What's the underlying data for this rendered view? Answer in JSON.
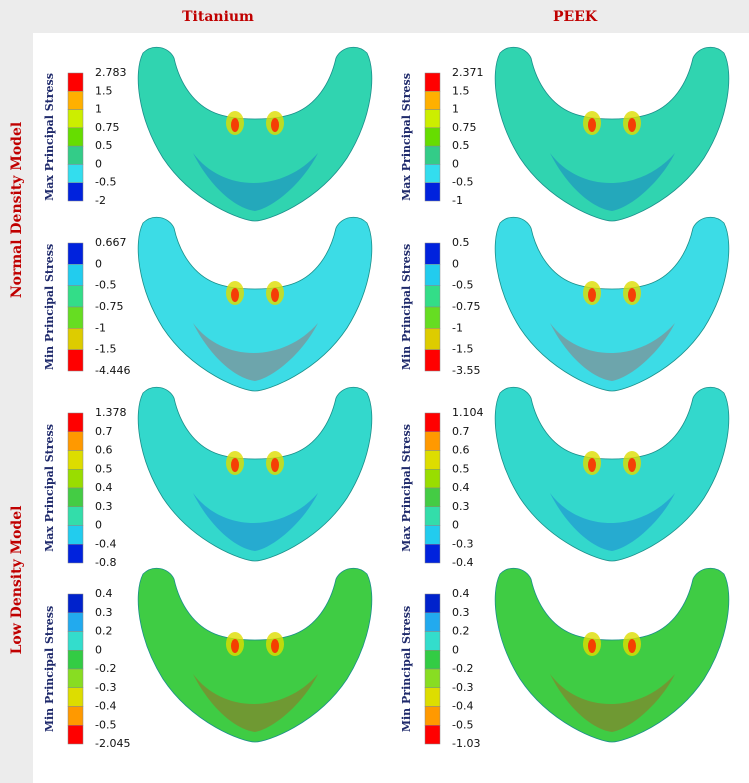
{
  "columns": [
    "Titanium",
    "PEEK"
  ],
  "rows": [
    {
      "label": "Normal Density Model",
      "panels": [
        {
          "stress": "Max Principal Stress",
          "legend": [
            2.783,
            1.5,
            1,
            0.75,
            0.5,
            0,
            -0.5,
            -2
          ],
          "colors": [
            "#ff0000",
            "#ffb000",
            "#ccee00",
            "#66dd00",
            "#33cc88",
            "#33ddee",
            "#0022dd"
          ],
          "surface": "#30d4b0"
        },
        {
          "stress": "Max Principal Stress",
          "legend": [
            2.371,
            1.5,
            1,
            0.75,
            0.5,
            0,
            -0.5,
            -1
          ],
          "colors": [
            "#ff0000",
            "#ffb000",
            "#ccee00",
            "#66dd00",
            "#33cc88",
            "#33ddee",
            "#0022dd"
          ],
          "surface": "#30d4b0"
        },
        {
          "stress": "Min Principal Stress",
          "legend": [
            0.667,
            0,
            -0.5,
            -0.75,
            -1,
            -1.5,
            -4.446
          ],
          "colors": [
            "#0022dd",
            "#22ccee",
            "#33dd88",
            "#66dd22",
            "#ddcc00",
            "#ff0000"
          ],
          "surface": "#3cdce6"
        },
        {
          "stress": "Min Principal Stress",
          "legend": [
            0.5,
            0,
            -0.5,
            -0.75,
            -1,
            -1.5,
            -3.55
          ],
          "colors": [
            "#0022dd",
            "#22ccee",
            "#33dd88",
            "#66dd22",
            "#ddcc00",
            "#ff0000"
          ],
          "surface": "#3cdce6"
        }
      ]
    },
    {
      "label": "Low Density Model",
      "panels": [
        {
          "stress": "Max Principal Stress",
          "legend": [
            1.378,
            0.7,
            0.6,
            0.5,
            0.4,
            0.3,
            0,
            -0.4,
            -0.8
          ],
          "colors": [
            "#ff0000",
            "#ff9900",
            "#dddd00",
            "#99dd00",
            "#44cc44",
            "#33ddaa",
            "#22ccee",
            "#0022dd"
          ],
          "surface": "#33d8cc"
        },
        {
          "stress": "Max Principal Stress",
          "legend": [
            1.104,
            0.7,
            0.6,
            0.5,
            0.4,
            0.3,
            0,
            -0.3,
            -0.4
          ],
          "colors": [
            "#ff0000",
            "#ff9900",
            "#dddd00",
            "#99dd00",
            "#44cc44",
            "#33ddaa",
            "#22ccee",
            "#0022dd"
          ],
          "surface": "#33d8cc"
        },
        {
          "stress": "Min Principal Stress",
          "legend": [
            0.4,
            0.3,
            0.2,
            0,
            -0.2,
            -0.3,
            -0.4,
            -0.5,
            -2.045
          ],
          "colors": [
            "#0022cc",
            "#22aaee",
            "#33ddcc",
            "#33cc44",
            "#88dd22",
            "#dddd00",
            "#ff9900",
            "#ff0000"
          ],
          "surface": "#3fcc44"
        },
        {
          "stress": "Min Principal Stress",
          "legend": [
            0.4,
            0.3,
            0.2,
            0,
            -0.2,
            -0.3,
            -0.4,
            -0.5,
            -1.03
          ],
          "colors": [
            "#0022cc",
            "#22aaee",
            "#33ddcc",
            "#33cc44",
            "#88dd22",
            "#dddd00",
            "#ff9900",
            "#ff0000"
          ],
          "surface": "#3fcc44"
        }
      ]
    }
  ]
}
